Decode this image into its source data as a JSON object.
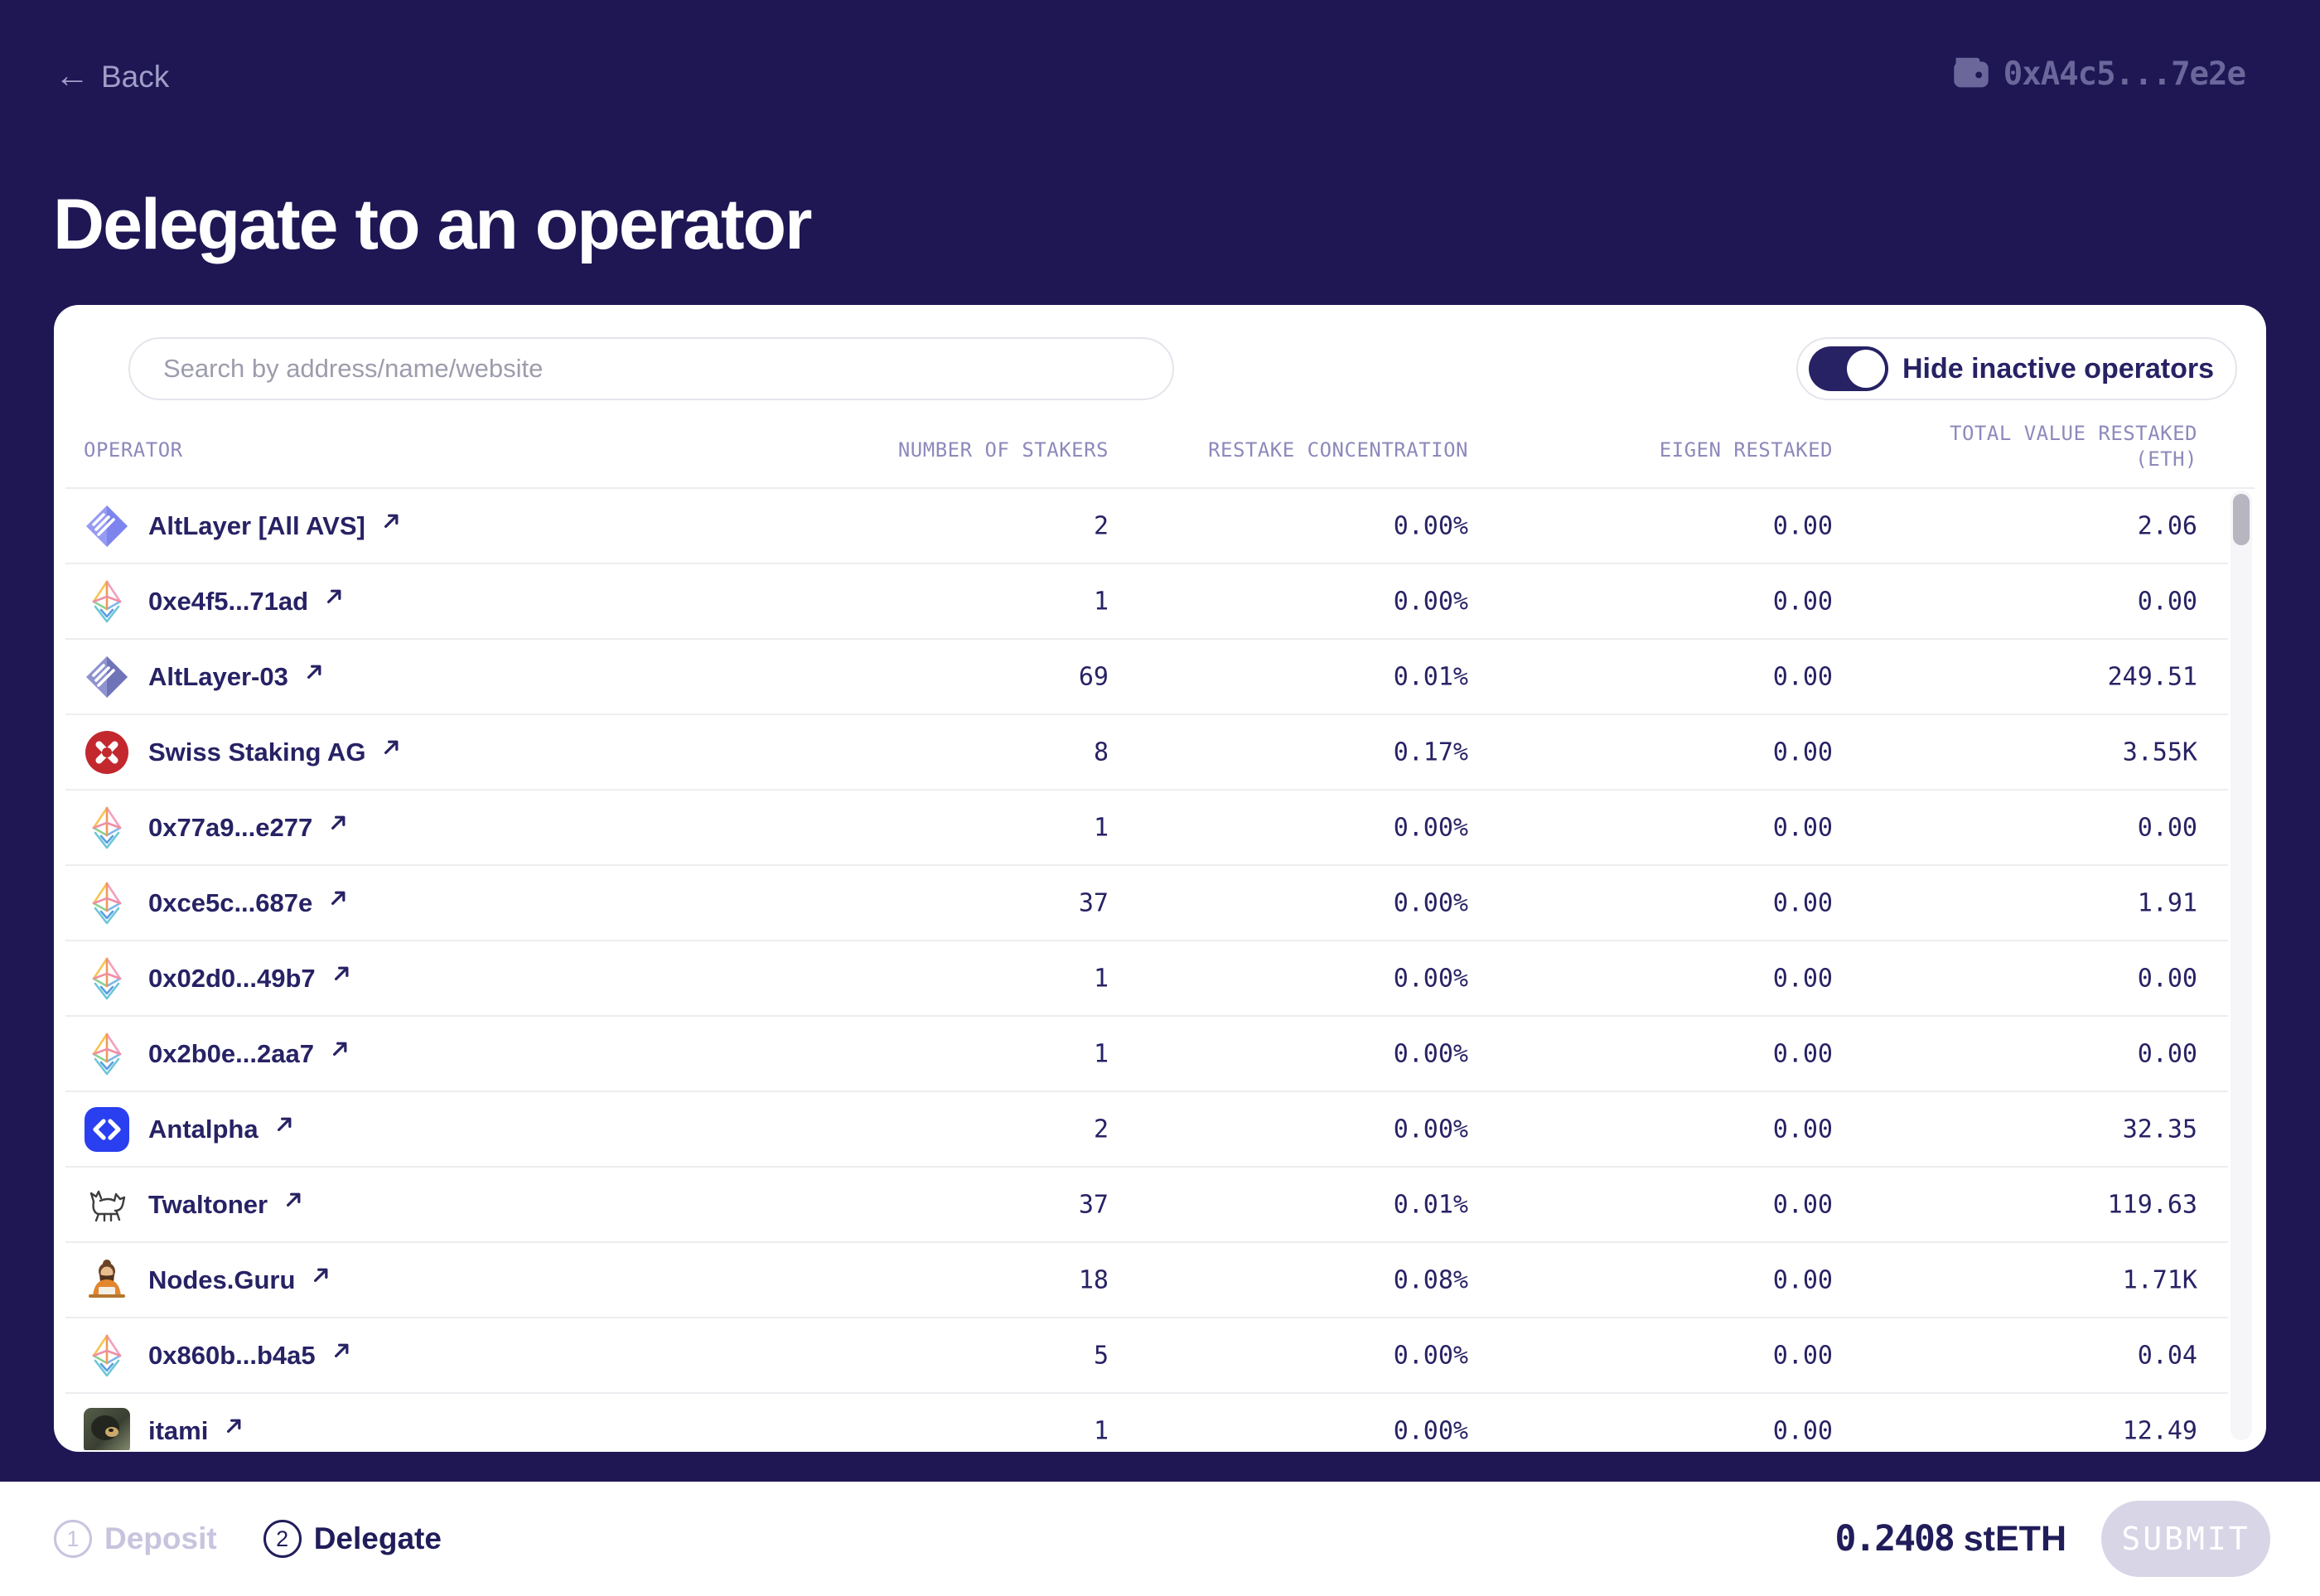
{
  "header": {
    "back_label": "Back",
    "wallet_address": "0xA4c5...7e2e"
  },
  "page_title": "Delegate to an operator",
  "panel": {
    "search_placeholder": "Search by address/name/website",
    "toggle_label": "Hide inactive operators",
    "toggle_on": true,
    "columns": [
      {
        "label": "OPERATOR"
      },
      {
        "label": "NUMBER OF STAKERS"
      },
      {
        "label": "RESTAKE CONCENTRATION"
      },
      {
        "label": "EIGEN RESTAKED"
      },
      {
        "label": "TOTAL VALUE RESTAKED",
        "label2": "(ETH)"
      }
    ],
    "rows": [
      {
        "name": "AltLayer [All AVS]",
        "icon": "altlayer-icon",
        "stakers": "2",
        "concentration": "0.00%",
        "eigen": "0.00",
        "total": "2.06"
      },
      {
        "name": "0xe4f5...71ad",
        "icon": "eth-icon",
        "stakers": "1",
        "concentration": "0.00%",
        "eigen": "0.00",
        "total": "0.00"
      },
      {
        "name": "AltLayer-03",
        "icon": "altlayer-dark-icon",
        "stakers": "69",
        "concentration": "0.01%",
        "eigen": "0.00",
        "total": "249.51"
      },
      {
        "name": "Swiss Staking AG",
        "icon": "swiss-staking-icon",
        "stakers": "8",
        "concentration": "0.17%",
        "eigen": "0.00",
        "total": "3.55K"
      },
      {
        "name": "0x77a9...e277",
        "icon": "eth-icon",
        "stakers": "1",
        "concentration": "0.00%",
        "eigen": "0.00",
        "total": "0.00"
      },
      {
        "name": "0xce5c...687e",
        "icon": "eth-icon",
        "stakers": "37",
        "concentration": "0.00%",
        "eigen": "0.00",
        "total": "1.91"
      },
      {
        "name": "0x02d0...49b7",
        "icon": "eth-icon",
        "stakers": "1",
        "concentration": "0.00%",
        "eigen": "0.00",
        "total": "0.00"
      },
      {
        "name": "0x2b0e...2aa7",
        "icon": "eth-icon",
        "stakers": "1",
        "concentration": "0.00%",
        "eigen": "0.00",
        "total": "0.00"
      },
      {
        "name": "Antalpha",
        "icon": "antalpha-icon",
        "stakers": "2",
        "concentration": "0.00%",
        "eigen": "0.00",
        "total": "32.35"
      },
      {
        "name": "Twaltoner",
        "icon": "twaltoner-icon",
        "stakers": "37",
        "concentration": "0.01%",
        "eigen": "0.00",
        "total": "119.63"
      },
      {
        "name": "Nodes.Guru",
        "icon": "nodesguru-icon",
        "stakers": "18",
        "concentration": "0.08%",
        "eigen": "0.00",
        "total": "1.71K"
      },
      {
        "name": "0x860b...b4a5",
        "icon": "eth-icon",
        "stakers": "5",
        "concentration": "0.00%",
        "eigen": "0.00",
        "total": "0.04"
      },
      {
        "name": "itami",
        "icon": "itami-icon",
        "stakers": "1",
        "concentration": "0.00%",
        "eigen": "0.00",
        "total": "12.49"
      }
    ]
  },
  "footer": {
    "steps": [
      {
        "number": "1",
        "label": "Deposit",
        "active": false
      },
      {
        "number": "2",
        "label": "Delegate",
        "active": true
      }
    ],
    "amount_value": "0.2408",
    "amount_unit": "stETH",
    "submit_label": "SUBMIT"
  },
  "colors": {
    "background_navy": "#1e1754",
    "text_navy": "#272264",
    "muted_lavender": "#8d89bb",
    "swiss_staking_red": "#c2282e",
    "antalpha_blue": "#2a3ff0",
    "altlayer_purple": "#858cf0",
    "disabled_submit": "#d8d5e7"
  }
}
